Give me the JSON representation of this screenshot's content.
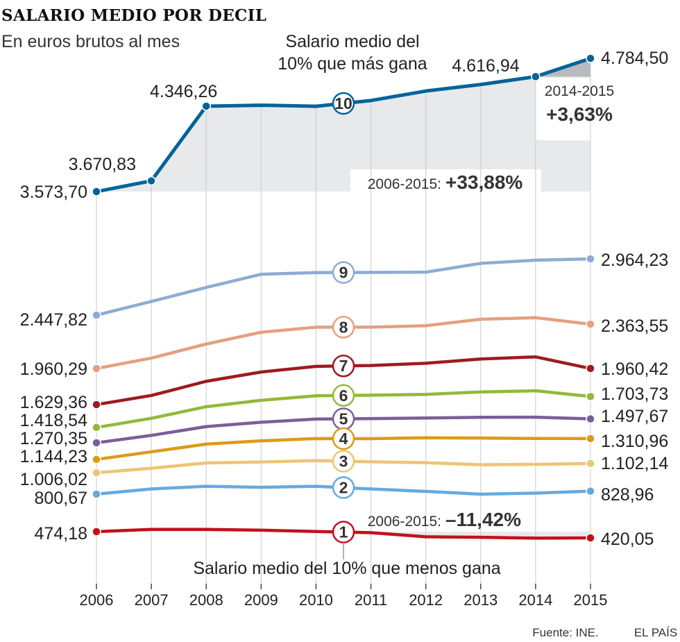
{
  "title": "SALARIO MEDIO POR DECIL",
  "subtitle": "En euros brutos al mes",
  "annotations": {
    "top_decile_line1": "Salario medio del",
    "top_decile_line2": "10% que más gana",
    "bottom_decile": "Salario medio del 10% que menos gana",
    "top_period_recent": "2014-2015",
    "top_change_recent": "+3,63%",
    "top_period_long_prefix": "2006-2015:",
    "top_change_long": "+33,88%",
    "bottom_period_long_prefix": "2006-2015:",
    "bottom_change_long": "–11,42%"
  },
  "source": "Fuente: INE.",
  "brand": "EL PAÍS",
  "chart_data": {
    "type": "line",
    "x": [
      "2006",
      "2007",
      "2008",
      "2009",
      "2010",
      "2011",
      "2012",
      "2013",
      "2014",
      "2015"
    ],
    "ylim": [
      300,
      4900
    ],
    "grid": "vertical",
    "series": [
      {
        "name": "10",
        "color": "#00639a",
        "start_label": "3.573,70",
        "end_label": "4.784,50",
        "values": [
          3573.7,
          3670.83,
          4346.26,
          4355,
          4345,
          4398,
          4485,
          4545,
          4616.94,
          4784.5
        ]
      },
      {
        "name": "9",
        "color": "#8eabd3",
        "start_label": "2.447,82",
        "end_label": "2.964,23",
        "values": [
          2447.82,
          2573,
          2702,
          2823,
          2838,
          2840,
          2842,
          2923,
          2952,
          2964.23
        ]
      },
      {
        "name": "8",
        "color": "#e4a07f",
        "start_label": "1.960,29",
        "end_label": "2.363,55",
        "values": [
          1960.29,
          2055,
          2183,
          2290,
          2336,
          2336,
          2350,
          2409,
          2424,
          2363.55
        ]
      },
      {
        "name": "7",
        "color": "#9e1b1e",
        "start_label": "1.629,36",
        "end_label": "1.960,42",
        "values": [
          1629.36,
          1713,
          1843,
          1928,
          1980,
          1988,
          2008,
          2047,
          2066,
          1960.42
        ]
      },
      {
        "name": "6",
        "color": "#94b83a",
        "start_label": "1.418,54",
        "end_label": "1.703,73",
        "values": [
          1418.54,
          1503,
          1610,
          1669,
          1710,
          1716,
          1723,
          1745,
          1756,
          1703.73
        ]
      },
      {
        "name": "5",
        "color": "#7b5e99",
        "start_label": "1.270,35",
        "end_label": "1.497,67",
        "values": [
          1270.35,
          1342,
          1427,
          1467,
          1496,
          1500,
          1506,
          1512,
          1513,
          1497.67
        ]
      },
      {
        "name": "4",
        "color": "#dc9b17",
        "start_label": "1.144,23",
        "end_label": "1.310,96",
        "values": [
          1144.23,
          1202,
          1260,
          1289,
          1311,
          1310,
          1319,
          1316,
          1312,
          1310.96
        ]
      },
      {
        "name": "3",
        "color": "#eec475",
        "start_label": "1.006,02",
        "end_label": "1.102,14",
        "values": [
          1006.02,
          1053,
          1108,
          1118,
          1132,
          1120,
          1111,
          1089,
          1094,
          1102.14
        ]
      },
      {
        "name": "2",
        "color": "#67a9df",
        "start_label": "800,67",
        "end_label": "828,96",
        "values": [
          800.67,
          850,
          876,
          866,
          876,
          850,
          827,
          800,
          810,
          828.96
        ]
      },
      {
        "name": "1",
        "color": "#c2111b",
        "start_label": "474,18",
        "end_label": "420,05",
        "values": [
          474.18,
          494,
          494,
          487,
          476,
          465,
          430,
          425,
          418,
          420.05
        ]
      }
    ]
  }
}
